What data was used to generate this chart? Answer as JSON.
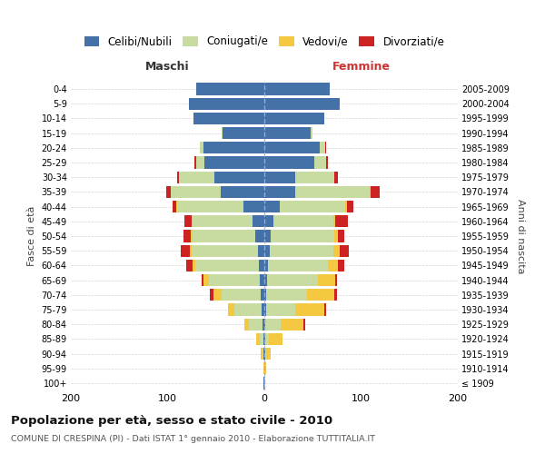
{
  "age_groups": [
    "100+",
    "95-99",
    "90-94",
    "85-89",
    "80-84",
    "75-79",
    "70-74",
    "65-69",
    "60-64",
    "55-59",
    "50-54",
    "45-49",
    "40-44",
    "35-39",
    "30-34",
    "25-29",
    "20-24",
    "15-19",
    "10-14",
    "5-9",
    "0-4"
  ],
  "birth_years": [
    "≤ 1909",
    "1910-1914",
    "1915-1919",
    "1920-1924",
    "1925-1929",
    "1930-1934",
    "1935-1939",
    "1940-1944",
    "1945-1949",
    "1950-1954",
    "1955-1959",
    "1960-1964",
    "1965-1969",
    "1970-1974",
    "1975-1979",
    "1980-1984",
    "1985-1989",
    "1990-1994",
    "1995-1999",
    "2000-2004",
    "2005-2009"
  ],
  "maschi": {
    "celibi": [
      1,
      0,
      1,
      1,
      2,
      3,
      4,
      5,
      6,
      7,
      9,
      12,
      22,
      45,
      52,
      62,
      63,
      43,
      73,
      78,
      70
    ],
    "coniugati": [
      0,
      0,
      1,
      4,
      14,
      28,
      40,
      52,
      65,
      68,
      65,
      62,
      68,
      52,
      36,
      8,
      4,
      1,
      0,
      0,
      0
    ],
    "vedovi": [
      0,
      1,
      2,
      3,
      5,
      7,
      9,
      6,
      3,
      2,
      2,
      1,
      1,
      0,
      0,
      0,
      0,
      0,
      0,
      0,
      0
    ],
    "divorziati": [
      0,
      0,
      0,
      0,
      0,
      0,
      3,
      2,
      7,
      9,
      8,
      8,
      4,
      4,
      2,
      2,
      0,
      0,
      0,
      0,
      0
    ]
  },
  "femmine": {
    "nubili": [
      0,
      0,
      1,
      1,
      1,
      2,
      2,
      3,
      4,
      6,
      7,
      9,
      16,
      32,
      32,
      52,
      57,
      48,
      62,
      78,
      68
    ],
    "coniugate": [
      0,
      0,
      1,
      4,
      16,
      30,
      42,
      52,
      62,
      65,
      65,
      62,
      68,
      77,
      40,
      12,
      6,
      2,
      0,
      0,
      0
    ],
    "vedove": [
      1,
      2,
      5,
      14,
      23,
      30,
      28,
      18,
      10,
      7,
      4,
      2,
      1,
      1,
      0,
      0,
      0,
      0,
      0,
      0,
      0
    ],
    "divorziate": [
      0,
      0,
      0,
      0,
      2,
      2,
      3,
      2,
      7,
      9,
      7,
      13,
      7,
      9,
      4,
      2,
      1,
      0,
      0,
      0,
      0
    ]
  },
  "colors": {
    "celibi_nubili": "#4472a8",
    "coniugati": "#c8dba0",
    "vedovi": "#f5c842",
    "divorziati": "#cc2222"
  },
  "title": "Popolazione per età, sesso e stato civile - 2010",
  "subtitle": "COMUNE DI CRESPINA (PI) - Dati ISTAT 1° gennaio 2010 - Elaborazione TUTTITALIA.IT",
  "xlabel_left": "Maschi",
  "xlabel_right": "Femmine",
  "ylabel_left": "Fasce di età",
  "ylabel_right": "Anni di nascita",
  "xlim": 200,
  "background_color": "#ffffff",
  "grid_color": "#cccccc",
  "legend_labels": [
    "Celibi/Nubili",
    "Coniugati/e",
    "Vedovi/e",
    "Divorziati/e"
  ]
}
